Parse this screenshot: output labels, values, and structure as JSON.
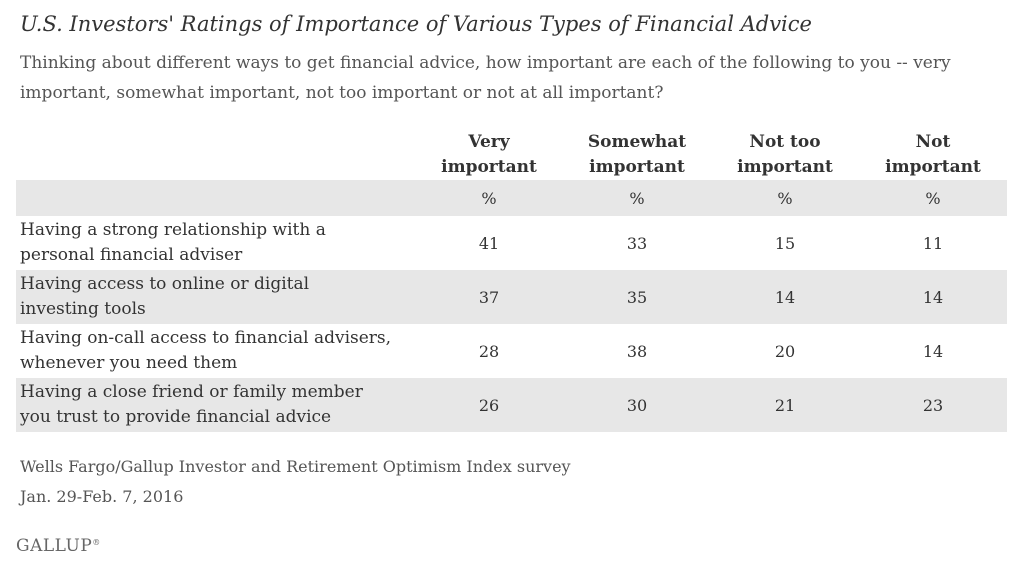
{
  "chart_data": {
    "type": "table",
    "title": "U.S. Investors' Ratings of Importance of Various Types of Financial Advice",
    "subtitle": "Thinking about different ways to get financial advice, how important are each of the following to you -- very important, somewhat important, not too important or not at all important?",
    "columns": [
      {
        "line1": "Very",
        "line2": "important"
      },
      {
        "line1": "Somewhat",
        "line2": "important"
      },
      {
        "line1": "Not too",
        "line2": "important"
      },
      {
        "line1": "Not",
        "line2": "important"
      }
    ],
    "unit": "%",
    "rows": [
      {
        "line1": "Having a strong relationship with a",
        "line2": "personal financial adviser",
        "values": [
          41,
          33,
          15,
          11
        ]
      },
      {
        "line1": "Having access to online or digital",
        "line2": "investing tools",
        "values": [
          37,
          35,
          14,
          14
        ]
      },
      {
        "line1": "Having on-call access to financial advisers,",
        "line2": "whenever you need them",
        "values": [
          28,
          38,
          20,
          14
        ]
      },
      {
        "line1": "Having a close friend or family member",
        "line2": "you trust to provide financial advice",
        "values": [
          26,
          30,
          21,
          23
        ]
      }
    ]
  },
  "source": {
    "line1": "Wells Fargo/Gallup Investor and Retirement Optimism Index survey",
    "line2": "Jan. 29-Feb. 7, 2016"
  },
  "logo": {
    "text": "GALLUP",
    "mark": "®"
  }
}
